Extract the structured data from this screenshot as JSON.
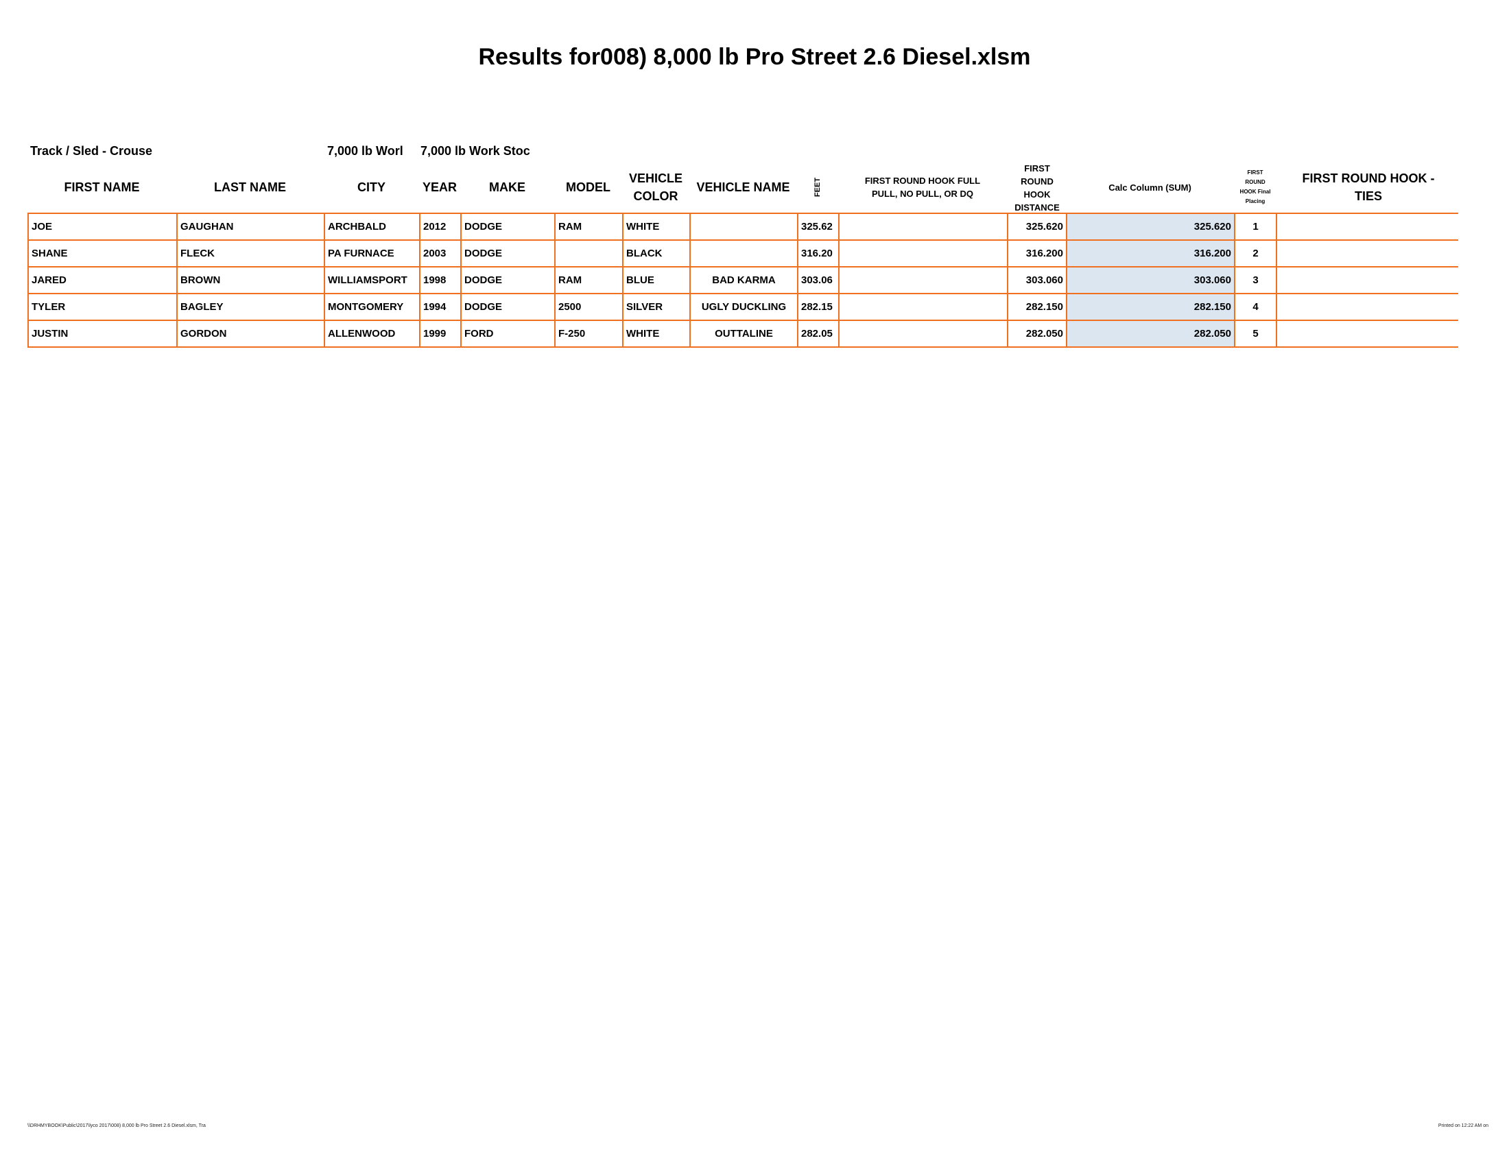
{
  "title": "Results for008) 8,000 lb Pro Street 2.6 Diesel.xlsm",
  "track_label": "Track / Sled - Crouse",
  "class_label_1": "7,000 lb  Worl",
  "class_label_2": "7,000 lb  Work Stoc",
  "headers": {
    "first_name": "FIRST NAME",
    "last_name": "LAST NAME",
    "city": "CITY",
    "year": "YEAR",
    "make": "MAKE",
    "model": "MODEL",
    "vehicle_color": "VEHICLE COLOR",
    "vehicle_name": "VEHICLE NAME",
    "feet": "FEET",
    "hook_status": "FIRST ROUND HOOK FULL PULL, NO PULL, OR DQ",
    "hook_distance": "FIRST ROUND HOOK DISTANCE",
    "calc": "Calc Column (SUM)",
    "placing": "FIRST ROUND HOOK Final Placing",
    "ties": "FIRST ROUND HOOK - TIES"
  },
  "rows": [
    {
      "first": "JOE",
      "last": "GAUGHAN",
      "city": "ARCHBALD",
      "year": "2012",
      "make": "DODGE",
      "model": "RAM",
      "color": "WHITE",
      "vname": "",
      "feet": "325.62",
      "status": "",
      "distance": "325.620",
      "calc": "325.620",
      "place": "1",
      "ties": ""
    },
    {
      "first": "SHANE",
      "last": "FLECK",
      "city": "PA FURNACE",
      "year": "2003",
      "make": "DODGE",
      "model": "",
      "color": "BLACK",
      "vname": "",
      "feet": "316.20",
      "status": "",
      "distance": "316.200",
      "calc": "316.200",
      "place": "2",
      "ties": ""
    },
    {
      "first": "JARED",
      "last": "BROWN",
      "city": "WILLIAMSPORT",
      "year": "1998",
      "make": "DODGE",
      "model": "RAM",
      "color": "BLUE",
      "vname": "BAD KARMA",
      "feet": "303.06",
      "status": "",
      "distance": "303.060",
      "calc": "303.060",
      "place": "3",
      "ties": ""
    },
    {
      "first": "TYLER",
      "last": "BAGLEY",
      "city": "MONTGOMERY",
      "year": "1994",
      "make": "DODGE",
      "model": "2500",
      "color": "SILVER",
      "vname": "UGLY DUCKLING",
      "feet": "282.15",
      "status": "",
      "distance": "282.150",
      "calc": "282.150",
      "place": "4",
      "ties": ""
    },
    {
      "first": "JUSTIN",
      "last": "GORDON",
      "city": "ALLENWOOD",
      "year": "1999",
      "make": "FORD",
      "model": "F-250",
      "color": "WHITE",
      "vname": "OUTTALINE",
      "feet": "282.05",
      "status": "",
      "distance": "282.050",
      "calc": "282.050",
      "place": "5",
      "ties": ""
    }
  ],
  "footer": {
    "path": "\\\\DRHMYBOOK\\Public\\2017\\lyco 2017\\008) 8,000 lb Pro Street 2.6 Diesel.xlsm, Tra",
    "printed": "Printed on 12:22 AM on"
  },
  "colors": {
    "grid": "#f07020",
    "calc_fill": "#dce6f1"
  }
}
